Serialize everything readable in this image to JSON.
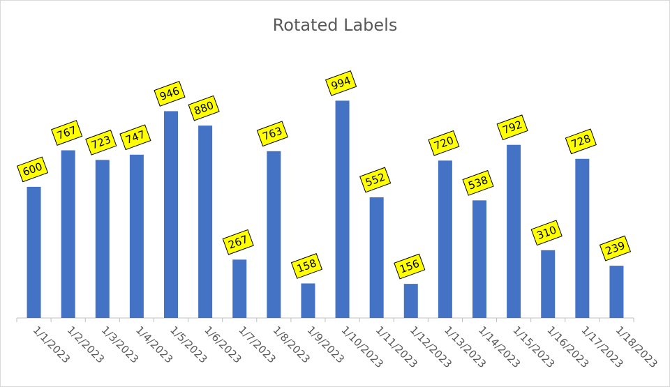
{
  "chart_data": {
    "type": "bar",
    "title": "Rotated Labels",
    "xlabel": "",
    "ylabel": "",
    "ylim": [
      0,
      1100
    ],
    "grid": false,
    "legend": "none",
    "bar_color": "#4472c4",
    "label_fill": "#ffff00",
    "categories": [
      "1/1/2023",
      "1/2/2023",
      "1/3/2023",
      "1/4/2023",
      "1/5/2023",
      "1/6/2023",
      "1/7/2023",
      "1/8/2023",
      "1/9/2023",
      "1/10/2023",
      "1/11/2023",
      "1/12/2023",
      "1/13/2023",
      "1/14/2023",
      "1/15/2023",
      "1/16/2023",
      "1/17/2023",
      "1/18/2023"
    ],
    "values": [
      600,
      767,
      723,
      747,
      946,
      880,
      267,
      763,
      158,
      994,
      552,
      156,
      720,
      538,
      792,
      310,
      728,
      239
    ]
  }
}
